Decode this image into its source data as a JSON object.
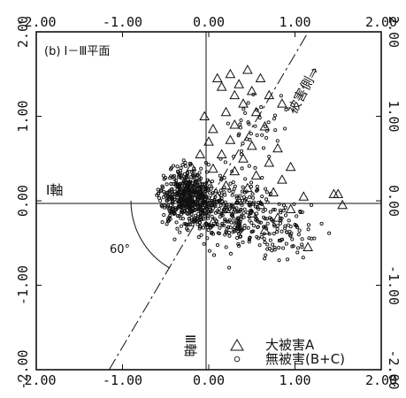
{
  "chart_data": {
    "type": "scatter",
    "title": "",
    "panel_label": "(b) Ⅰ－Ⅲ平面",
    "xlabel": "",
    "ylabel": "",
    "xlim": [
      -2,
      2
    ],
    "ylim": [
      -2,
      2
    ],
    "x_ticks": [
      "-2.00",
      "-1.00",
      "0.00",
      "1.00",
      "2.00"
    ],
    "y_ticks": [
      "2.00",
      "1.00",
      "0.00",
      "-1.00",
      "-2.00"
    ],
    "axis_label_h": "Ⅰ軸",
    "axis_label_v": "Ⅲ軸",
    "damage_direction_label": "被害側⇒",
    "angle_label": "60°",
    "boundary_angle_deg": 60,
    "grid": false,
    "legend_position": "bottom-right",
    "series": [
      {
        "name": "大被害A",
        "marker": "triangle",
        "points": [
          [
            0.1,
            1.45
          ],
          [
            0.25,
            1.5
          ],
          [
            0.45,
            1.55
          ],
          [
            0.6,
            1.45
          ],
          [
            0.35,
            1.38
          ],
          [
            0.15,
            1.35
          ],
          [
            0.5,
            1.3
          ],
          [
            0.3,
            1.25
          ],
          [
            0.7,
            1.25
          ],
          [
            0.4,
            1.15
          ],
          [
            -0.05,
            1.0
          ],
          [
            0.2,
            1.05
          ],
          [
            0.55,
            1.05
          ],
          [
            0.85,
            1.15
          ],
          [
            0.05,
            0.85
          ],
          [
            0.3,
            0.9
          ],
          [
            0.65,
            0.88
          ],
          [
            0.0,
            0.7
          ],
          [
            0.25,
            0.72
          ],
          [
            0.5,
            0.65
          ],
          [
            0.8,
            0.62
          ],
          [
            -0.1,
            0.55
          ],
          [
            0.15,
            0.55
          ],
          [
            0.4,
            0.5
          ],
          [
            0.7,
            0.45
          ],
          [
            0.95,
            0.4
          ],
          [
            -0.2,
            0.4
          ],
          [
            0.05,
            0.38
          ],
          [
            0.3,
            0.35
          ],
          [
            0.55,
            0.3
          ],
          [
            0.85,
            0.25
          ],
          [
            -0.25,
            0.25
          ],
          [
            0.0,
            0.2
          ],
          [
            0.2,
            0.18
          ],
          [
            0.45,
            0.15
          ],
          [
            0.75,
            0.1
          ],
          [
            1.1,
            0.05
          ],
          [
            -0.15,
            0.1
          ],
          [
            0.1,
            0.05
          ],
          [
            0.35,
            0.0
          ],
          [
            0.6,
            -0.05
          ],
          [
            0.95,
            -0.1
          ],
          [
            -0.3,
            0.05
          ],
          [
            -0.05,
            -0.05
          ],
          [
            0.2,
            -0.1
          ],
          [
            0.5,
            -0.15
          ],
          [
            0.8,
            -0.2
          ],
          [
            1.45,
            0.08
          ],
          [
            1.5,
            0.08
          ],
          [
            1.55,
            -0.05
          ],
          [
            0.05,
            -0.25
          ],
          [
            0.35,
            -0.3
          ],
          [
            0.65,
            -0.35
          ],
          [
            1.15,
            -0.55
          ]
        ]
      },
      {
        "name": "無被害(B+C)",
        "marker": "circle"
      }
    ]
  },
  "legend": {
    "items": [
      {
        "label": "大被害A",
        "marker": "triangle"
      },
      {
        "label": "無被害(B+C)",
        "marker": "circle"
      }
    ]
  }
}
